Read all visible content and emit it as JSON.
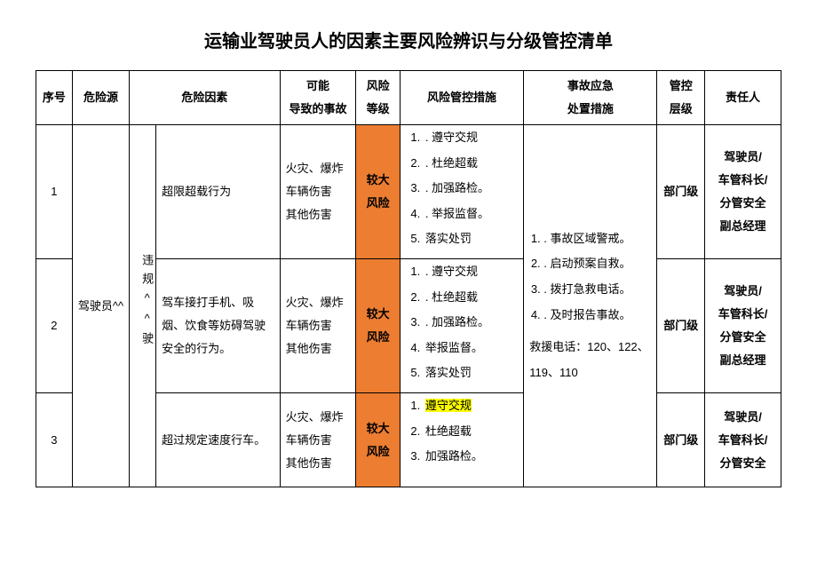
{
  "title": "运输业驾驶员人的因素主要风险辨识与分级管控清单",
  "headers": {
    "seq": "序号",
    "source": "危险源",
    "factor": "危险因素",
    "accident": "可能\n导致的事故",
    "risk_level": "风险\n等级",
    "control": "风险管控措施",
    "emergency": "事故应急\n处置措施",
    "mgmt_level": "管控\n层级",
    "responsible": "责任人"
  },
  "source": "驾驶员^^",
  "category_vert": "违规^^驶",
  "risk_level_text": "较大风险",
  "risk_bg_color": "#ed7d31",
  "highlight_color": "#ffff00",
  "accidents_text": "火灾、爆炸\n车辆伤害\n其他伤害",
  "mgmt_level_text": "部门级",
  "responsible_text": "驾驶员/\n车管科长/\n分管安全\n副总经理",
  "responsible_text_short": "驾驶员/\n车管科长/\n分管安全",
  "control_measures": {
    "items": [
      ". 遵守交规",
      ". 杜绝超载",
      ". 加强路检。",
      ". 举报监督。",
      "落实处罚"
    ]
  },
  "control_measures_row2_special": {
    "items": [
      ". 遵守交规",
      ". 杜绝超载",
      ". 加强路检。",
      "举报监督。",
      "落实处罚"
    ]
  },
  "control_measures_row3": {
    "items": [
      "遵守交规",
      "杜绝超载",
      "加强路检。"
    ]
  },
  "emergency_block": {
    "items": [
      ". 事故区域警戒。",
      ". 启动预案自救。",
      ". 拨打急救电话。",
      ". 及时报告事故。"
    ],
    "phones": "救援电话：120、122、119、110"
  },
  "rows": [
    {
      "seq": "1",
      "factor": "超限超载行为"
    },
    {
      "seq": "2",
      "factor": "驾车接打手机、吸烟、饮食等妨碍驾驶安全的行为。"
    },
    {
      "seq": "3",
      "factor": "超过规定速度行车。"
    }
  ]
}
